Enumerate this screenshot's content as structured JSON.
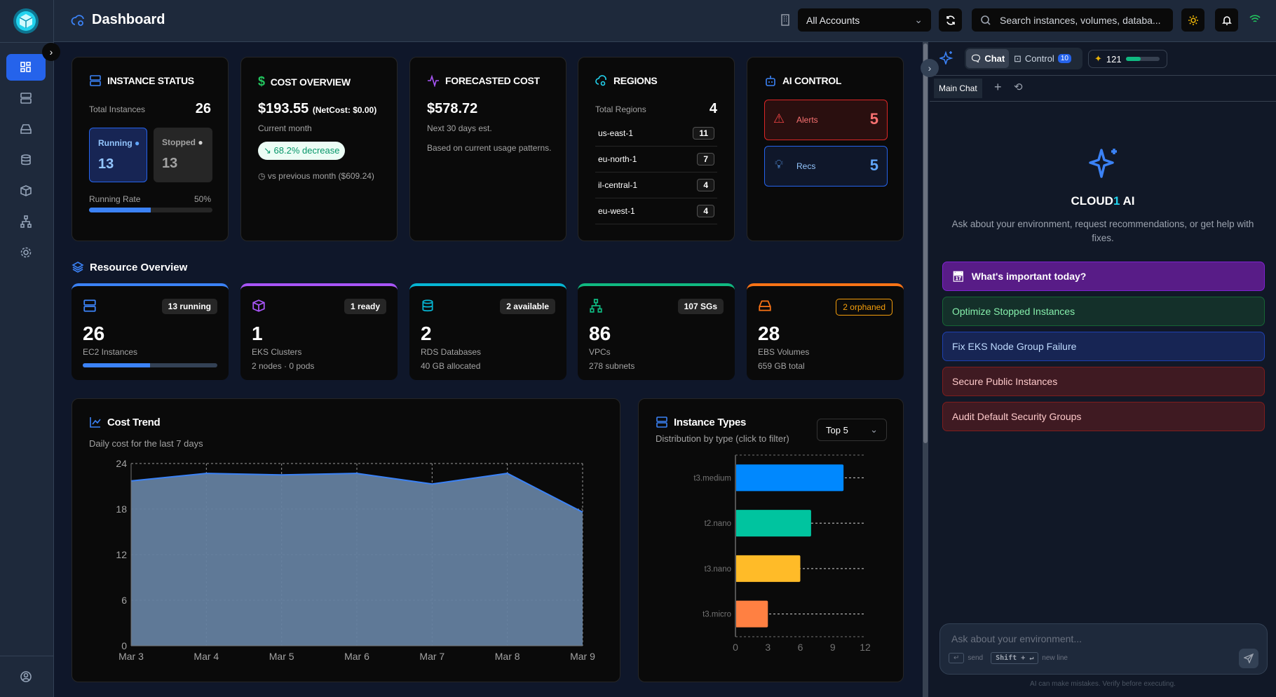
{
  "header": {
    "title": "Dashboard",
    "account": "All Accounts",
    "search_placeholder": "Search instances, volumes, databa..."
  },
  "instance_status": {
    "title": "INSTANCE STATUS",
    "total_label": "Total Instances",
    "total": "26",
    "running_label": "Running",
    "running": "13",
    "stopped_label": "Stopped",
    "stopped": "13",
    "rate_label": "Running Rate",
    "rate": "50%",
    "rate_value": 50
  },
  "cost_overview": {
    "title": "COST OVERVIEW",
    "amount": "$193.55",
    "netcost": "(NetCost: $0.00)",
    "period": "Current month",
    "change": "68.2% decrease",
    "compare": "vs previous month ($609.24)"
  },
  "forecast": {
    "title": "FORECASTED COST",
    "amount": "$578.72",
    "period": "Next 30 days est.",
    "note": "Based on current usage patterns."
  },
  "regions": {
    "title": "REGIONS",
    "total_label": "Total Regions",
    "total": "4",
    "items": [
      {
        "name": "us-east-1",
        "count": "11"
      },
      {
        "name": "eu-north-1",
        "count": "7"
      },
      {
        "name": "il-central-1",
        "count": "4"
      },
      {
        "name": "eu-west-1",
        "count": "4"
      }
    ]
  },
  "ai_control": {
    "title": "AI CONTROL",
    "alerts_label": "Alerts",
    "alerts": "5",
    "recs_label": "Recs",
    "recs": "5"
  },
  "resource_overview": {
    "title": "Resource Overview",
    "cards": [
      {
        "badge": "13 running",
        "value": "26",
        "label": "EC2 Instances",
        "sub": "",
        "color": "#3b82f6",
        "progress": 50
      },
      {
        "badge": "1 ready",
        "value": "1",
        "label": "EKS Clusters",
        "sub": "2 nodes · 0 pods",
        "color": "#a855f7"
      },
      {
        "badge": "2 available",
        "value": "2",
        "label": "RDS Databases",
        "sub": "40 GB allocated",
        "color": "#06b6d4"
      },
      {
        "badge": "107 SGs",
        "value": "86",
        "label": "VPCs",
        "sub": "278 subnets",
        "color": "#10b981"
      },
      {
        "badge": "2 orphaned",
        "value": "28",
        "label": "EBS Volumes",
        "sub": "659 GB total",
        "color": "#f97316"
      }
    ]
  },
  "cost_trend": {
    "title": "Cost Trend",
    "subtitle": "Daily cost for the last 7 days"
  },
  "instance_types": {
    "title": "Instance Types",
    "subtitle": "Distribution by type (click to filter)",
    "filter": "Top 5"
  },
  "chart_data": [
    {
      "type": "area",
      "title": "Cost Trend",
      "x": [
        "Mar 3",
        "Mar 4",
        "Mar 5",
        "Mar 6",
        "Mar 7",
        "Mar 8",
        "Mar 9"
      ],
      "values": [
        21.7,
        22.7,
        22.5,
        22.7,
        21.3,
        22.7,
        17.6
      ],
      "ylim": [
        0,
        24
      ],
      "yticks": [
        0,
        6,
        12,
        18,
        24
      ],
      "grid": true
    },
    {
      "type": "bar",
      "orientation": "horizontal",
      "title": "Instance Types",
      "categories": [
        "t3.medium",
        "t2.nano",
        "t3.nano",
        "t3.micro"
      ],
      "values": [
        10,
        7,
        6,
        3
      ],
      "colors": [
        "#0088fe",
        "#00c49f",
        "#ffbb28",
        "#ff8042"
      ],
      "xlim": [
        0,
        12
      ],
      "xticks": [
        0,
        3,
        6,
        9,
        12
      ]
    }
  ],
  "panel": {
    "tab_chat": "Chat",
    "tab_control": "Control",
    "control_count": "10",
    "credits": "121",
    "credits_fraction": 0.45,
    "chat_tab": "Main Chat",
    "brand_a": "CLOUD",
    "brand_b": "1",
    "brand_c": " AI",
    "intro": "Ask about your environment, request recommendations, or get help with fixes.",
    "suggestions": [
      "What's important today?",
      "Optimize Stopped Instances",
      "Fix EKS Node Group Failure",
      "Secure Public Instances",
      "Audit Default Security Groups"
    ],
    "input_placeholder": "Ask about your environment...",
    "send_key": "↵",
    "send_hint": "send",
    "newline_key": "Shift + ↵",
    "newline_hint": "new line",
    "disclaimer": "AI can make mistakes. Verify before executing."
  }
}
